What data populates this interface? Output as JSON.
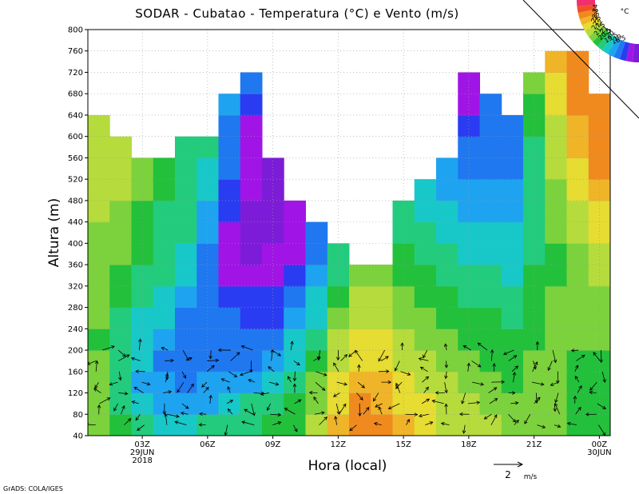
{
  "chart_data": {
    "type": "heatmap",
    "title": "SODAR - Cubatao - Temperatura (°C) e Vento (m/s)",
    "xlabel": "Hora (local)",
    "ylabel": "Altura (m)",
    "ylim": [
      40,
      800
    ],
    "xlim": [
      0,
      23
    ],
    "yticks": [
      "40",
      "80",
      "120",
      "160",
      "200",
      "240",
      "280",
      "320",
      "360",
      "400",
      "440",
      "480",
      "520",
      "560",
      "600",
      "640",
      "680",
      "720",
      "760",
      "800"
    ],
    "xticks": [
      {
        "hour": 2,
        "label": "03Z",
        "line2": "29JUN",
        "line3": "2018"
      },
      {
        "hour": 5,
        "label": "06Z",
        "line2": "",
        "line3": ""
      },
      {
        "hour": 8,
        "label": "09Z",
        "line2": "",
        "line3": ""
      },
      {
        "hour": 11,
        "label": "12Z",
        "line2": "",
        "line3": ""
      },
      {
        "hour": 14,
        "label": "15Z",
        "line2": "",
        "line3": ""
      },
      {
        "hour": 17,
        "label": "18Z",
        "line2": "",
        "line3": ""
      },
      {
        "hour": 20,
        "label": "21Z",
        "line2": "",
        "line3": ""
      },
      {
        "hour": 23,
        "label": "00Z",
        "line2": "30JUN",
        "line3": ""
      }
    ],
    "grid": true,
    "color_scale": {
      "unit": "°C",
      "levels": [
        "18.5",
        "19",
        "19.5",
        "20",
        "20.5",
        "21",
        "21.5",
        "22",
        "22.5",
        "23",
        "23.5",
        "24"
      ],
      "colors": [
        "#7d1cd8",
        "#a015e6",
        "#2a3cf2",
        "#1f78f0",
        "#1ea3f0",
        "#18c8c8",
        "#22cc7c",
        "#23c03c",
        "#7cd23c",
        "#b5dc3c",
        "#e6dc32",
        "#f0b428",
        "#f08a1e",
        "#f05028",
        "#f0306e"
      ]
    },
    "wind_reference": {
      "label": "2",
      "unit": "m/s"
    },
    "series": [
      {
        "hour": 0,
        "top": 580,
        "values": [
          22.4,
          22.3,
          22.1,
          22.0,
          21.9,
          22.0,
          22.1,
          22.2,
          22.3,
          22.4,
          22.5,
          22.6,
          22.7,
          22.8,
          22.9
        ]
      },
      {
        "hour": 1,
        "top": 540,
        "values": [
          21.6,
          21.3,
          21.1,
          21.0,
          21.1,
          21.3,
          21.5,
          21.7,
          22.0,
          22.2,
          22.4,
          22.6,
          22.8,
          22.9
        ]
      },
      {
        "hour": 2,
        "top": 500,
        "values": [
          21.0,
          20.6,
          20.4,
          20.5,
          20.7,
          20.9,
          21.1,
          21.3,
          21.5,
          21.7,
          21.9,
          22.1,
          22.3
        ]
      },
      {
        "hour": 3,
        "top": 500,
        "values": [
          20.6,
          20.2,
          20.0,
          19.9,
          20.1,
          20.5,
          20.9,
          21.1,
          21.2,
          21.3,
          21.4,
          21.5,
          21.6
        ]
      },
      {
        "hour": 4,
        "top": 520,
        "values": [
          20.6,
          20.1,
          19.9,
          19.6,
          19.7,
          19.9,
          20.2,
          20.6,
          20.9,
          21.0,
          21.1,
          21.2,
          21.3,
          21.4
        ]
      },
      {
        "hour": 5,
        "top": 520,
        "values": [
          21.0,
          20.4,
          20.2,
          19.9,
          19.8,
          19.9,
          19.7,
          19.6,
          19.8,
          20.1,
          20.4,
          20.6,
          20.8,
          21.0
        ]
      },
      {
        "hour": 6,
        "top": 580,
        "values": [
          21.2,
          20.6,
          20.3,
          19.8,
          19.6,
          19.5,
          19.1,
          18.9,
          18.8,
          18.9,
          19.1,
          19.4,
          19.6,
          19.8,
          19.9,
          20.0
        ]
      },
      {
        "hour": 7,
        "top": 620,
        "values": [
          21.4,
          21.0,
          20.4,
          19.9,
          19.6,
          19.4,
          19.1,
          18.7,
          18.4,
          18.3,
          18.4,
          18.5,
          18.6,
          18.7,
          18.8,
          19.2,
          19.6
        ]
      },
      {
        "hour": 8,
        "top": 500,
        "values": [
          21.6,
          21.2,
          20.8,
          20.4,
          19.8,
          19.4,
          19.0,
          18.7,
          18.5,
          18.4,
          18.4,
          18.3,
          18.3
        ]
      },
      {
        "hour": 9,
        "top": 440,
        "values": [
          21.8,
          21.5,
          21.1,
          20.8,
          20.5,
          20.0,
          19.6,
          19.2,
          18.9,
          18.6,
          18.5
        ]
      },
      {
        "hour": 10,
        "top": 420,
        "values": [
          22.6,
          22.3,
          22.0,
          21.7,
          21.3,
          20.9,
          20.5,
          20.1,
          19.8,
          19.7
        ]
      },
      {
        "hour": 11,
        "top": 380,
        "values": [
          23.6,
          23.4,
          23.1,
          22.8,
          22.5,
          22.2,
          21.8,
          21.4,
          21.0
        ]
      },
      {
        "hour": 12,
        "top": 340,
        "values": [
          24.6,
          24.2,
          23.8,
          23.4,
          23.1,
          22.8,
          22.5,
          22.2
        ]
      },
      {
        "hour": 13,
        "top": 340,
        "values": [
          24.1,
          23.8,
          23.5,
          23.2,
          23.0,
          22.8,
          22.5,
          22.1
        ]
      },
      {
        "hour": 14,
        "top": 440,
        "values": [
          23.5,
          23.3,
          23.1,
          22.8,
          22.5,
          22.3,
          22.0,
          21.7,
          21.5,
          21.2,
          21.0
        ]
      },
      {
        "hour": 15,
        "top": 480,
        "values": [
          23.2,
          23.0,
          22.8,
          22.6,
          22.4,
          22.1,
          21.9,
          21.6,
          21.3,
          21.0,
          20.7,
          20.5
        ]
      },
      {
        "hour": 16,
        "top": 500,
        "values": [
          22.9,
          22.7,
          22.5,
          22.3,
          22.1,
          21.8,
          21.5,
          21.3,
          21.1,
          20.8,
          20.5,
          20.2,
          20.0
        ]
      },
      {
        "hour": 17,
        "top": 620,
        "values": [
          22.7,
          22.5,
          22.3,
          22.1,
          21.9,
          21.6,
          21.3,
          21.1,
          20.9,
          20.6,
          20.3,
          20.0,
          19.8,
          19.6,
          19.4,
          18.9,
          18.5
        ]
      },
      {
        "hour": 18,
        "top": 580,
        "values": [
          22.5,
          22.3,
          22.1,
          21.9,
          21.7,
          21.5,
          21.3,
          21.1,
          20.9,
          20.6,
          20.3,
          20.1,
          19.9,
          19.7,
          19.6,
          19.5
        ]
      },
      {
        "hour": 19,
        "top": 560,
        "values": [
          22.3,
          22.1,
          21.9,
          21.7,
          21.5,
          21.3,
          21.1,
          20.9,
          20.7,
          20.5,
          20.3,
          20.1,
          19.9,
          19.8,
          19.9
        ]
      },
      {
        "hour": 20,
        "top": 640,
        "values": [
          22.2,
          22.1,
          22.0,
          22.0,
          21.9,
          21.7,
          21.6,
          21.5,
          21.3,
          21.2,
          21.1,
          21.1,
          21.2,
          21.4,
          21.6,
          21.8,
          22.0
        ]
      },
      {
        "hour": 21,
        "top": 660,
        "values": [
          22.0,
          22.0,
          22.0,
          22.1,
          22.1,
          22.0,
          22.0,
          21.9,
          21.9,
          22.0,
          22.1,
          22.3,
          22.5,
          22.7,
          22.9,
          23.1,
          23.3,
          23.5
        ]
      },
      {
        "hour": 22,
        "top": 660,
        "values": [
          21.8,
          21.8,
          21.9,
          21.9,
          22.0,
          22.0,
          22.1,
          22.2,
          22.3,
          22.5,
          22.8,
          23.0,
          23.3,
          23.6,
          23.8,
          24.0,
          24.1,
          24.2
        ]
      },
      {
        "hour": 23,
        "top": 600,
        "values": [
          21.7,
          21.7,
          21.8,
          21.9,
          22.0,
          22.1,
          22.3,
          22.5,
          22.8,
          23.1,
          23.4,
          23.7,
          24.0,
          24.2,
          24.4,
          24.5
        ]
      }
    ]
  },
  "footer": {
    "credit": "GrADS: COLA/IGES"
  }
}
